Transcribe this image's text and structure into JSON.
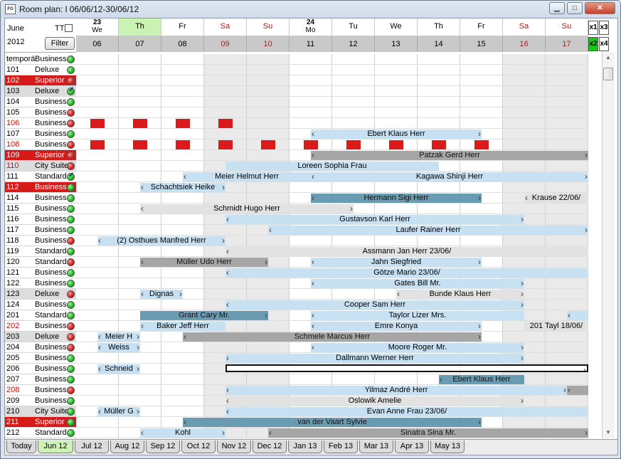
{
  "window": {
    "icon": "FO",
    "title": "Room plan: l 06/06/12-30/06/12"
  },
  "controls": {
    "month": "June",
    "year": "2012",
    "tt_label": "TT",
    "filter_label": "Filter",
    "zoom": [
      "x1",
      "x3",
      "x2",
      "x4"
    ]
  },
  "header": {
    "days": [
      {
        "wd": "We",
        "num": "06",
        "week": "23",
        "we": false,
        "sel": false
      },
      {
        "wd": "Th",
        "num": "07",
        "week": "",
        "we": false,
        "sel": true
      },
      {
        "wd": "Fr",
        "num": "08",
        "week": "",
        "we": false,
        "sel": false
      },
      {
        "wd": "Sa",
        "num": "09",
        "week": "",
        "we": true,
        "sel": false
      },
      {
        "wd": "Su",
        "num": "10",
        "week": "",
        "we": true,
        "sel": false
      },
      {
        "wd": "Mo",
        "num": "11",
        "week": "24",
        "we": false,
        "sel": false
      },
      {
        "wd": "Tu",
        "num": "12",
        "week": "",
        "we": false,
        "sel": false
      },
      {
        "wd": "We",
        "num": "13",
        "week": "",
        "we": false,
        "sel": false
      },
      {
        "wd": "Th",
        "num": "14",
        "week": "",
        "we": false,
        "sel": false
      },
      {
        "wd": "Fr",
        "num": "15",
        "week": "",
        "we": false,
        "sel": false
      },
      {
        "wd": "Sa",
        "num": "16",
        "week": "",
        "we": true,
        "sel": false
      },
      {
        "wd": "Su",
        "num": "17",
        "week": "",
        "we": true,
        "sel": false
      }
    ]
  },
  "rooms": [
    {
      "num": "temporä",
      "type": "Business",
      "st": "g",
      "hl": ""
    },
    {
      "num": "101",
      "type": "Deluxe",
      "st": "g",
      "hl": ""
    },
    {
      "num": "102",
      "type": "Superior",
      "st": "r",
      "hl": "sel"
    },
    {
      "num": "103",
      "type": "Deluxe",
      "st": "chk",
      "hl": "grey"
    },
    {
      "num": "104",
      "type": "Business",
      "st": "g",
      "hl": ""
    },
    {
      "num": "105",
      "type": "Business",
      "st": "r",
      "hl": ""
    },
    {
      "num": "106",
      "type": "Business",
      "st": "r",
      "hl": "red"
    },
    {
      "num": "107",
      "type": "Business",
      "st": "g",
      "hl": ""
    },
    {
      "num": "108",
      "type": "Business",
      "st": "r",
      "hl": "red"
    },
    {
      "num": "109",
      "type": "Superior",
      "st": "r",
      "hl": "sel"
    },
    {
      "num": "110",
      "type": "City Suite",
      "st": "r",
      "hl": "greyred"
    },
    {
      "num": "111",
      "type": "Standard",
      "st": "chk",
      "hl": ""
    },
    {
      "num": "112",
      "type": "Business",
      "st": "g",
      "hl": "sel"
    },
    {
      "num": "114",
      "type": "Business",
      "st": "g",
      "hl": ""
    },
    {
      "num": "115",
      "type": "Business",
      "st": "g",
      "hl": ""
    },
    {
      "num": "116",
      "type": "Business",
      "st": "g",
      "hl": ""
    },
    {
      "num": "117",
      "type": "Business",
      "st": "g",
      "hl": ""
    },
    {
      "num": "118",
      "type": "Business",
      "st": "r",
      "hl": ""
    },
    {
      "num": "119",
      "type": "Standard",
      "st": "g",
      "hl": ""
    },
    {
      "num": "120",
      "type": "Standard",
      "st": "r",
      "hl": ""
    },
    {
      "num": "121",
      "type": "Business",
      "st": "g",
      "hl": ""
    },
    {
      "num": "122",
      "type": "Business",
      "st": "g",
      "hl": ""
    },
    {
      "num": "123",
      "type": "Deluxe",
      "st": "r",
      "hl": "grey"
    },
    {
      "num": "124",
      "type": "Business",
      "st": "g",
      "hl": ""
    },
    {
      "num": "201",
      "type": "Standard",
      "st": "g",
      "hl": ""
    },
    {
      "num": "202",
      "type": "Business",
      "st": "r",
      "hl": "red"
    },
    {
      "num": "203",
      "type": "Deluxe",
      "st": "r",
      "hl": "grey"
    },
    {
      "num": "204",
      "type": "Business",
      "st": "r",
      "hl": ""
    },
    {
      "num": "205",
      "type": "Business",
      "st": "g",
      "hl": ""
    },
    {
      "num": "206",
      "type": "Business",
      "st": "g",
      "hl": ""
    },
    {
      "num": "207",
      "type": "Business",
      "st": "g",
      "hl": ""
    },
    {
      "num": "208",
      "type": "Business",
      "st": "r",
      "hl": "red"
    },
    {
      "num": "209",
      "type": "Business",
      "st": "g",
      "hl": ""
    },
    {
      "num": "210",
      "type": "City Suite",
      "st": "g",
      "hl": "grey"
    },
    {
      "num": "211",
      "type": "Superior",
      "st": "g",
      "hl": "sel"
    },
    {
      "num": "212",
      "type": "Standard",
      "st": "g",
      "hl": ""
    }
  ],
  "markers": [
    {
      "row": 6,
      "days": [
        0,
        1,
        2,
        3
      ]
    },
    {
      "row": 8,
      "days": [
        0,
        1,
        2,
        3,
        4,
        5,
        6,
        7,
        8,
        9
      ]
    }
  ],
  "bars": [
    {
      "row": 7,
      "s": 5,
      "e": 9,
      "c": "lb",
      "label": "Ebert Klaus Herr",
      "l": 1,
      "r": 1
    },
    {
      "row": 9,
      "s": 5,
      "e": 12,
      "c": "gy",
      "label": "Patzak Gerd Herr",
      "l": 1,
      "r": 1
    },
    {
      "row": 10,
      "s": 3,
      "e": 8,
      "c": "lb",
      "label": "Loreen Sophia Frau",
      "l": 0,
      "r": 0
    },
    {
      "row": 11,
      "s": 2,
      "e": 5,
      "c": "lb",
      "label": "Meier Helmut Herr",
      "l": 1,
      "r": 0
    },
    {
      "row": 11,
      "s": 5,
      "e": 12,
      "c": "lb",
      "label": "Kagawa Shinji Herr",
      "l": 1,
      "r": 1
    },
    {
      "row": 12,
      "s": 1,
      "e": 3,
      "c": "lb",
      "label": "Schachtsiek Heike",
      "l": 1,
      "r": 1
    },
    {
      "row": 13,
      "s": 5,
      "e": 9,
      "c": "db",
      "label": "Hermann Sigi Herr",
      "l": 1,
      "r": 1
    },
    {
      "row": 13,
      "s": 10,
      "e": 12,
      "c": "lg",
      "label": "Krause  22/06/",
      "l": 1,
      "r": 0
    },
    {
      "row": 14,
      "s": 1,
      "e": 6,
      "c": "lg",
      "label": "Schmidt Hugo Herr",
      "l": 1,
      "r": 1
    },
    {
      "row": 15,
      "s": 3,
      "e": 10,
      "c": "lb",
      "label": "Gustavson Karl Herr",
      "l": 1,
      "r": 1
    },
    {
      "row": 16,
      "s": 4,
      "e": 12,
      "c": "lb",
      "label": "Laufer Rainer Herr",
      "l": 1,
      "r": 1
    },
    {
      "row": 17,
      "s": 0,
      "e": 3,
      "c": "lb",
      "label": "(2) Osthues Manfred Herr",
      "l": 1,
      "r": 1
    },
    {
      "row": 18,
      "s": 3,
      "e": 12,
      "c": "lg",
      "label": "Assmann Jan Herr  23/06/",
      "l": 1,
      "r": 0
    },
    {
      "row": 19,
      "s": 1,
      "e": 4,
      "c": "gy",
      "label": "Müller Udo Herr",
      "l": 1,
      "r": 1
    },
    {
      "row": 19,
      "s": 5,
      "e": 9,
      "c": "lb",
      "label": "Jahn Siegfried",
      "l": 1,
      "r": 1
    },
    {
      "row": 20,
      "s": 3,
      "e": 12,
      "c": "lb",
      "label": "Götze Mario  23/06/",
      "l": 1,
      "r": 0
    },
    {
      "row": 21,
      "s": 5,
      "e": 10,
      "c": "lb",
      "label": "Gates Bill Mr.",
      "l": 1,
      "r": 1
    },
    {
      "row": 22,
      "s": 1,
      "e": 2,
      "c": "lb",
      "label": "Dignas",
      "l": 1,
      "r": 1
    },
    {
      "row": 22,
      "s": 7,
      "e": 10,
      "c": "lg",
      "label": "Bunde Klaus Herr",
      "l": 1,
      "r": 1
    },
    {
      "row": 23,
      "s": 3,
      "e": 10,
      "c": "lb",
      "label": "Cooper Sam Herr",
      "l": 1,
      "r": 1
    },
    {
      "row": 24,
      "s": 1,
      "e": 4,
      "c": "db",
      "label": "Grant Cary Mr.",
      "l": 0,
      "r": 1
    },
    {
      "row": 24,
      "s": 5,
      "e": 10,
      "c": "lb",
      "label": "Taylor Lizer Mrs.",
      "l": 1,
      "r": 0
    },
    {
      "row": 24,
      "s": 11,
      "e": 12,
      "c": "lb",
      "label": "",
      "l": 1,
      "r": 0
    },
    {
      "row": 25,
      "s": 1,
      "e": 3,
      "c": "lb",
      "label": "Baker Jeff Herr",
      "l": 1,
      "r": 0
    },
    {
      "row": 25,
      "s": 5,
      "e": 9,
      "c": "lb",
      "label": "Emre Konya",
      "l": 1,
      "r": 1
    },
    {
      "row": 25,
      "s": 10,
      "e": 12,
      "c": "lg",
      "label": "201 Tayl  18/06/",
      "l": 0,
      "r": 0
    },
    {
      "row": 26,
      "s": 0,
      "e": 1,
      "c": "lb",
      "label": "Meier H",
      "l": 1,
      "r": 1
    },
    {
      "row": 26,
      "s": 2,
      "e": 9,
      "c": "gy",
      "label": "Schmele Marcus Herr",
      "l": 1,
      "r": 1
    },
    {
      "row": 27,
      "s": 0,
      "e": 1,
      "c": "lb",
      "label": "Weiss",
      "l": 1,
      "r": 1
    },
    {
      "row": 27,
      "s": 5,
      "e": 10,
      "c": "lb",
      "label": "Moore Roger Mr.",
      "l": 1,
      "r": 1
    },
    {
      "row": 28,
      "s": 3,
      "e": 10,
      "c": "lb",
      "label": "Dallmann Werner Herr",
      "l": 1,
      "r": 1
    },
    {
      "row": 29,
      "s": 0,
      "e": 1,
      "c": "lb",
      "label": "Schneid",
      "l": 1,
      "r": 1
    },
    {
      "row": 29,
      "s": 3,
      "e": 12,
      "c": "wh",
      "label": "",
      "l": 0,
      "r": 1
    },
    {
      "row": 30,
      "s": 8,
      "e": 10,
      "c": "db",
      "label": "Ebert Klaus Herr",
      "l": 1,
      "r": 0
    },
    {
      "row": 31,
      "s": 3,
      "e": 11,
      "c": "lb",
      "label": "Yilmaz André Herr",
      "l": 1,
      "r": 1
    },
    {
      "row": 31,
      "s": 11,
      "e": 12,
      "c": "gy",
      "label": "",
      "l": 1,
      "r": 0
    },
    {
      "row": 32,
      "s": 3,
      "e": 10,
      "c": "lg",
      "label": "Oslowik Amelie",
      "l": 1,
      "r": 1
    },
    {
      "row": 33,
      "s": 0,
      "e": 1,
      "c": "lb",
      "label": "Müller G",
      "l": 1,
      "r": 1
    },
    {
      "row": 33,
      "s": 3,
      "e": 12,
      "c": "lb",
      "label": "Evan Anne Frau  23/06/",
      "l": 1,
      "r": 0
    },
    {
      "row": 34,
      "s": 2,
      "e": 9,
      "c": "db",
      "label": "van der Vaart Sylvie",
      "l": 1,
      "r": 1
    },
    {
      "row": 35,
      "s": 1,
      "e": 3,
      "c": "lb",
      "label": "Kohl",
      "l": 1,
      "r": 1
    },
    {
      "row": 35,
      "s": 4,
      "e": 12,
      "c": "gy",
      "label": "Sinatra Sina Mr.",
      "l": 1,
      "r": 1
    }
  ],
  "tabs": [
    "Today",
    "Jun 12",
    "Jul 12",
    "Aug 12",
    "Sep 12",
    "Oct 12",
    "Nov 12",
    "Dec 12",
    "Jan 13",
    "Feb 13",
    "Mar 13",
    "Apr 13",
    "May 13"
  ],
  "active_tab": 1
}
